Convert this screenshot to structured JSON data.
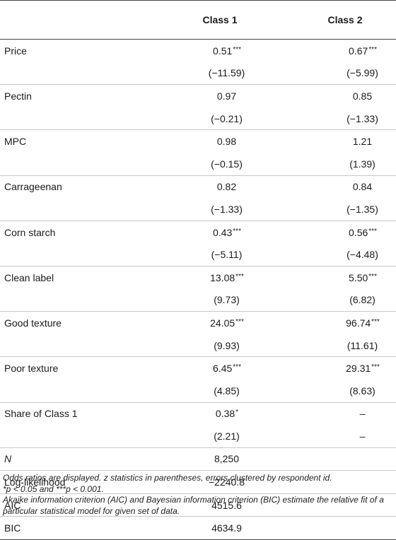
{
  "table": {
    "headers": [
      "",
      "Class 1",
      "Class 2"
    ],
    "rows": [
      {
        "label": "Price",
        "c1": "0.51",
        "s1": "***",
        "c2": "0.67",
        "s2": "***"
      },
      {
        "label": "",
        "c1": "(−11.59)",
        "s1": "",
        "c2": "(−5.99)",
        "s2": "",
        "group_end": true
      },
      {
        "label": "Pectin",
        "c1": "0.97",
        "s1": "",
        "c2": "0.85",
        "s2": ""
      },
      {
        "label": "",
        "c1": "(−0.21)",
        "s1": "",
        "c2": "(−1.33)",
        "s2": "",
        "group_end": true
      },
      {
        "label": "MPC",
        "c1": "0.98",
        "s1": "",
        "c2": "1.21",
        "s2": ""
      },
      {
        "label": "",
        "c1": "(−0.15)",
        "s1": "",
        "c2": "(1.39)",
        "s2": "",
        "group_end": true
      },
      {
        "label": "Carrageenan",
        "c1": "0.82",
        "s1": "",
        "c2": "0.84",
        "s2": ""
      },
      {
        "label": "",
        "c1": "(−1.33)",
        "s1": "",
        "c2": "(−1.35)",
        "s2": "",
        "group_end": true
      },
      {
        "label": "Corn starch",
        "c1": "0.43",
        "s1": "***",
        "c2": "0.56",
        "s2": "***"
      },
      {
        "label": "",
        "c1": "(−5.11)",
        "s1": "",
        "c2": "(−4.48)",
        "s2": "",
        "group_end": true
      },
      {
        "label": "Clean label",
        "c1": "13.08",
        "s1": "***",
        "c2": "5.50",
        "s2": "***"
      },
      {
        "label": "",
        "c1": "(9.73)",
        "s1": "",
        "c2": "(6.82)",
        "s2": "",
        "group_end": true
      },
      {
        "label": "Good texture",
        "c1": "24.05",
        "s1": "***",
        "c2": "96.74",
        "s2": "***"
      },
      {
        "label": "",
        "c1": "(9.93)",
        "s1": "",
        "c2": "(11.61)",
        "s2": "",
        "group_end": true
      },
      {
        "label": "Poor texture",
        "c1": "6.45",
        "s1": "***",
        "c2": "29.31",
        "s2": "***"
      },
      {
        "label": "",
        "c1": "(4.85)",
        "s1": "",
        "c2": "(8.63)",
        "s2": "",
        "group_end": true
      },
      {
        "label": "Share of Class 1",
        "c1": "0.38",
        "s1": "*",
        "c2": "–",
        "s2": ""
      },
      {
        "label": "",
        "c1": "(2.21)",
        "s1": "",
        "c2": "–",
        "s2": "",
        "group_end": true
      },
      {
        "label": "N",
        "label_italic": true,
        "c1": "8,250",
        "s1": "",
        "c2": "",
        "s2": "",
        "group_end": true
      },
      {
        "label": "Log-likelihood",
        "c1": "−2240.8",
        "s1": "",
        "c2": "",
        "s2": "",
        "group_end": true
      },
      {
        "label": "AIC",
        "c1": "4515.6",
        "s1": "",
        "c2": "",
        "s2": "",
        "group_end": true
      },
      {
        "label": "BIC",
        "c1": "4634.9",
        "s1": "",
        "c2": "",
        "s2": "",
        "last": true
      }
    ]
  },
  "notes": [
    "Odds ratios are displayed. z statistics in parentheses, errors clustered by respondent id.",
    "*p < 0.05 and ***p < 0.001.",
    "Akaike information criterion (AIC) and Bayesian information criterion (BIC) estimate the relative fit of a particular statistical model for given set of data."
  ]
}
